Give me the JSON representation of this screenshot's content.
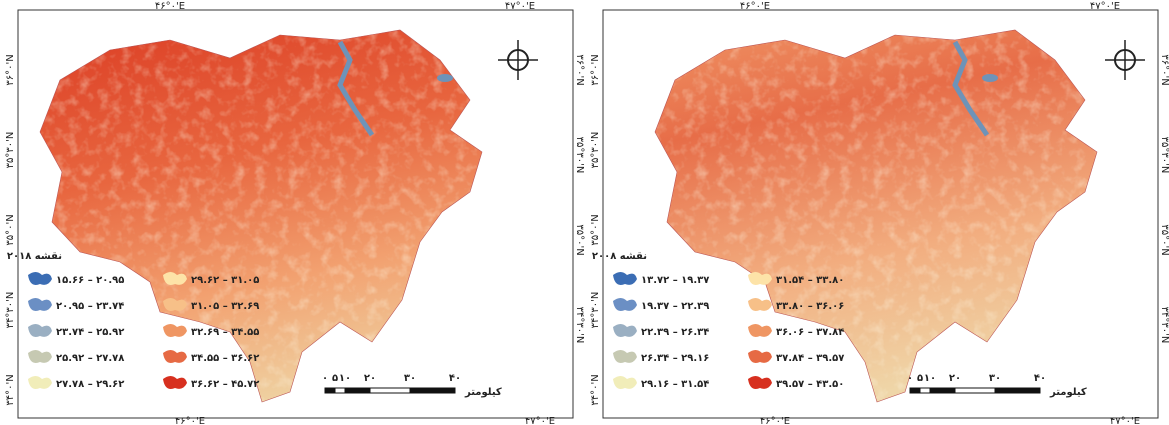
{
  "maps": [
    {
      "title": "نقشه ۲۰۱۸",
      "legend": [
        {
          "label": "۱۵.۶۶ – ۲۰.۹۵",
          "color": "#3b6db4"
        },
        {
          "label": "۲۰.۹۵ – ۲۳.۷۴",
          "color": "#6b8fc4"
        },
        {
          "label": "۲۳.۷۴ – ۲۵.۹۲",
          "color": "#9aafc2"
        },
        {
          "label": "۲۵.۹۲ – ۲۷.۷۸",
          "color": "#c6c9b2"
        },
        {
          "label": "۲۷.۷۸ – ۲۹.۶۲",
          "color": "#f1edb9"
        },
        {
          "label": "۲۹.۶۲ – ۳۱.۰۵",
          "color": "#fde3a8"
        },
        {
          "label": "۳۱.۰۵ – ۳۲.۶۹",
          "color": "#f7c088"
        },
        {
          "label": "۳۲.۶۹ – ۳۴.۵۵",
          "color": "#ef9663"
        },
        {
          "label": "۳۴.۵۵ – ۳۶.۶۲",
          "color": "#e66a44"
        },
        {
          "label": "۳۶.۶۲ – ۴۵.۷۲",
          "color": "#d7301f"
        }
      ],
      "scale_labels": [
        "۰",
        "۵",
        "۱۰",
        "۲۰",
        "۳۰",
        "۴۰"
      ],
      "scale_unit": "کیلومتر",
      "top_labels": [
        "۴۶°۰'E",
        "۴۷°۰'E"
      ],
      "bottom_labels": [
        "۴۶°۰'E",
        "۴۷°۰'E"
      ],
      "left_labels": [
        "۳۶°۰'N",
        "۳۵°۳۰'N",
        "۳۵°۰'N",
        "۳۴°۳۰'N",
        "۳۴°۰'N"
      ],
      "right_labels": [
        "۳۶°۰'N",
        "۳۵°۳۰'N",
        "۳۵°۰'N",
        "۳۴°۳۰'N"
      ]
    },
    {
      "title": "نقشه ۲۰۰۸",
      "legend": [
        {
          "label": "۱۳.۷۲ – ۱۹.۳۷",
          "color": "#3b6db4"
        },
        {
          "label": "۱۹.۳۷ – ۲۲.۳۹",
          "color": "#6b8fc4"
        },
        {
          "label": "۲۲.۳۹ – ۲۶.۳۴",
          "color": "#9aafc2"
        },
        {
          "label": "۲۶.۳۴ – ۲۹.۱۶",
          "color": "#c6c9b2"
        },
        {
          "label": "۲۹.۱۶ – ۳۱.۵۴",
          "color": "#f1edb9"
        },
        {
          "label": "۳۱.۵۴ – ۳۳.۸۰",
          "color": "#fde3a8"
        },
        {
          "label": "۳۳.۸۰ – ۳۶.۰۶",
          "color": "#f7c088"
        },
        {
          "label": "۳۶.۰۶ – ۳۷.۸۴",
          "color": "#ef9663"
        },
        {
          "label": "۳۷.۸۴ – ۳۹.۵۷",
          "color": "#e66a44"
        },
        {
          "label": "۳۹.۵۷ – ۴۳.۵۰",
          "color": "#d7301f"
        }
      ],
      "scale_labels": [
        "۰",
        "۵",
        "۱۰",
        "۲۰",
        "۳۰",
        "۴۰"
      ],
      "scale_unit": "کیلومتر",
      "top_labels": [
        "۴۶°۰'E",
        "۴۷°۰'E"
      ],
      "bottom_labels": [
        "۴۶°۰'E",
        "۴۷°۰'E"
      ],
      "left_labels": [
        "۳۶°۰'N",
        "۳۵°۳۰'N",
        "۳۵°۰'N",
        "۳۴°۳۰'N",
        "۳۴°۰'N"
      ],
      "right_labels": [
        "۳۶°۰'N",
        "۳۵°۳۰'N",
        "۳۵°۰'N",
        "۳۴°۳۰'N"
      ]
    }
  ]
}
